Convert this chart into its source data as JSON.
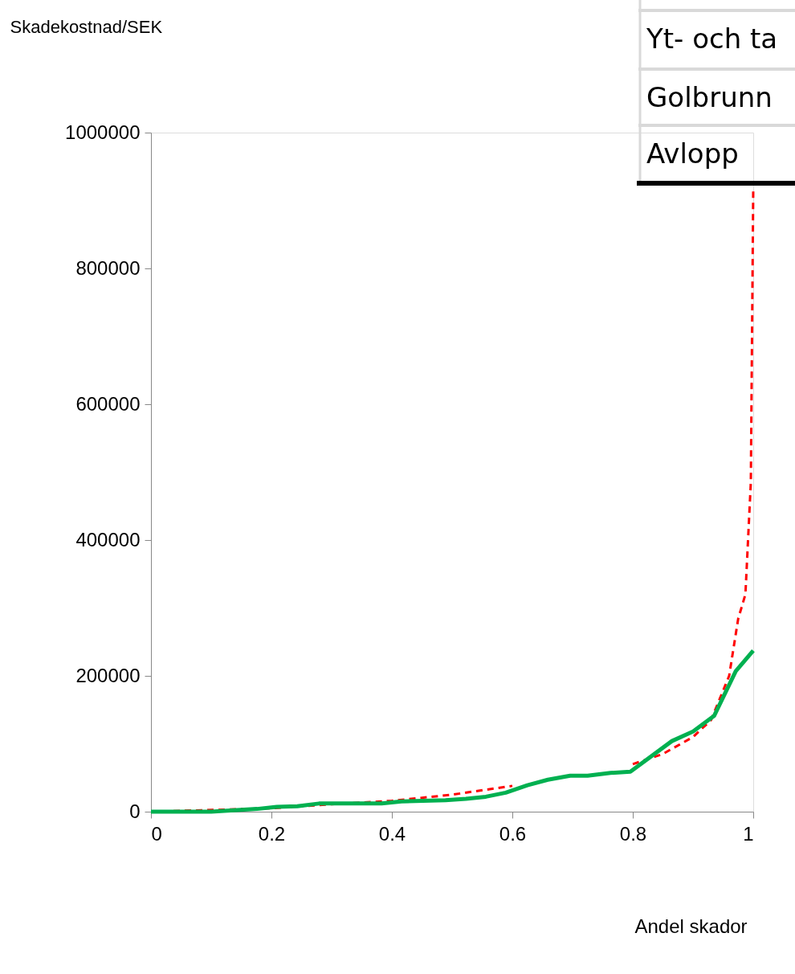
{
  "chart_data": {
    "type": "line",
    "xlabel": "Andel skador",
    "ylabel": "Skadekostnad/SEK",
    "xlim": [
      0,
      1
    ],
    "xticks": [
      0,
      0.2,
      0.4,
      0.6,
      0.8,
      1
    ],
    "ylim": [
      0,
      1000000
    ],
    "yticks": [
      0,
      200000,
      400000,
      600000,
      800000,
      1000000
    ],
    "grid": false,
    "annotations": [
      "Yt- och ta",
      "Golbrunn",
      "Avlopp"
    ],
    "series": [
      {
        "color": "#ff0000",
        "line_style": "dashed",
        "x": [
          0,
          0.2,
          0.3,
          0.4,
          0.5,
          0.6,
          0.7,
          0.8,
          0.85,
          0.9,
          0.93,
          0.96,
          0.975,
          0.987,
          0.996,
          1
        ],
        "values": [
          0,
          5000,
          11000,
          16000,
          25000,
          38000,
          null,
          70000,
          85000,
          110000,
          135000,
          200000,
          284000,
          320000,
          485000,
          915000
        ]
      },
      {
        "color": "#00b050",
        "line_style": "solid",
        "x": [
          0,
          0.1,
          0.176,
          0.209,
          0.243,
          0.279,
          0.383,
          0.416,
          0.489,
          0.523,
          0.556,
          0.589,
          0.625,
          0.659,
          0.696,
          0.725,
          0.763,
          0.796,
          0.865,
          0.9,
          0.935,
          0.971,
          1
        ],
        "values": [
          0,
          0,
          4000,
          7000,
          8000,
          12000,
          12000,
          15000,
          17000,
          19000,
          22000,
          28000,
          39000,
          47000,
          53000,
          53000,
          57000,
          59000,
          104000,
          118000,
          141000,
          207000,
          237000
        ]
      }
    ]
  }
}
